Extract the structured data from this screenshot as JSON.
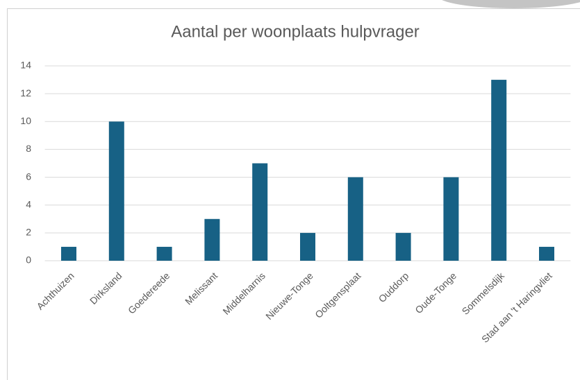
{
  "chart_data": {
    "type": "bar",
    "title": "Aantal per woonplaats hulpvrager",
    "categories": [
      "Achthuizen",
      "Dirksland",
      "Goedereede",
      "Melissant",
      "Middelharnis",
      "Nieuwe-Tonge",
      "Ooltgensplaat",
      "Ouddorp",
      "Oude-Tonge",
      "Sommelsdijk",
      "Stad aan 't Haringvliet"
    ],
    "values": [
      1,
      10,
      1,
      3,
      7,
      2,
      6,
      2,
      6,
      13,
      1
    ],
    "color": "#176185",
    "ylim": [
      0,
      14
    ],
    "yticks": [
      0,
      2,
      4,
      6,
      8,
      10,
      12,
      14
    ],
    "grid": true
  }
}
